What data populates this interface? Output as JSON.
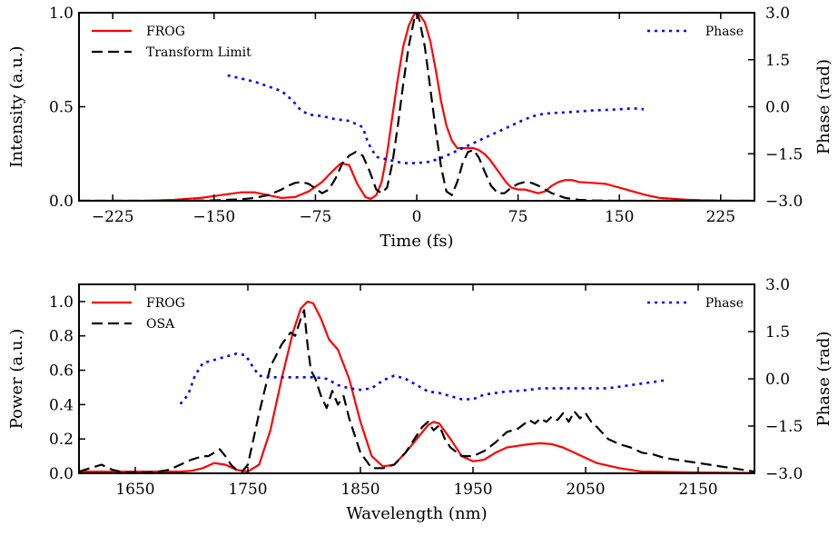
{
  "chart_data": [
    {
      "type": "line",
      "xlabel": "Time (fs)",
      "ylabel": "Intensity (a.u.)",
      "y2label": "Phase (rad)",
      "xlim": [
        -250,
        250
      ],
      "ylim": [
        0,
        1.0
      ],
      "y2lim": [
        -3.0,
        3.0
      ],
      "xticks": [
        -225,
        -150,
        -75,
        0,
        75,
        150,
        225
      ],
      "xtick_labels": [
        "−225",
        "−150",
        "−75",
        "0",
        "75",
        "150",
        "225"
      ],
      "yticks": [
        0.0,
        0.5,
        1.0
      ],
      "ytick_labels": [
        "0.0",
        "0.5",
        "1.0"
      ],
      "y2ticks": [
        -3.0,
        -1.5,
        0.0,
        1.5,
        3.0
      ],
      "y2tick_labels": [
        "−3.0",
        "−1.5",
        "0.0",
        "1.5",
        "3.0"
      ],
      "grid": false,
      "legend_left": [
        "FROG",
        "Transform Limit"
      ],
      "legend_right": [
        "Phase"
      ],
      "series": [
        {
          "name": "FROG",
          "axis": "left",
          "color": "#ff0000",
          "dash": "solid",
          "x": [
            -250,
            -200,
            -180,
            -160,
            -145,
            -130,
            -120,
            -110,
            -100,
            -90,
            -80,
            -70,
            -62,
            -56,
            -50,
            -44,
            -38,
            -34,
            -30,
            -26,
            -22,
            -18,
            -14,
            -10,
            -6,
            -2,
            0,
            2,
            6,
            10,
            14,
            18,
            22,
            26,
            30,
            34,
            38,
            42,
            46,
            50,
            54,
            58,
            62,
            66,
            70,
            75,
            80,
            85,
            90,
            95,
            100,
            105,
            110,
            115,
            120,
            130,
            140,
            150,
            160,
            170,
            180,
            190,
            200,
            210,
            225,
            250
          ],
          "y": [
            0,
            0,
            0.005,
            0.015,
            0.03,
            0.045,
            0.045,
            0.03,
            0.015,
            0.02,
            0.05,
            0.1,
            0.16,
            0.2,
            0.19,
            0.09,
            0.02,
            0.01,
            0.03,
            0.1,
            0.25,
            0.45,
            0.65,
            0.82,
            0.93,
            0.99,
            1.0,
            0.99,
            0.95,
            0.85,
            0.7,
            0.53,
            0.4,
            0.32,
            0.28,
            0.28,
            0.28,
            0.28,
            0.27,
            0.25,
            0.22,
            0.18,
            0.14,
            0.1,
            0.07,
            0.06,
            0.06,
            0.05,
            0.04,
            0.05,
            0.08,
            0.1,
            0.11,
            0.11,
            0.1,
            0.095,
            0.09,
            0.07,
            0.05,
            0.03,
            0.015,
            0.01,
            0.006,
            0.003,
            0.001,
            0
          ]
        },
        {
          "name": "Transform Limit",
          "axis": "left",
          "color": "#000000",
          "dash": "dashed",
          "x": [
            -250,
            -180,
            -150,
            -130,
            -120,
            -110,
            -100,
            -95,
            -90,
            -85,
            -80,
            -75,
            -70,
            -65,
            -60,
            -55,
            -50,
            -45,
            -40,
            -35,
            -30,
            -26,
            -22,
            -18,
            -14,
            -10,
            -6,
            -2,
            0,
            2,
            6,
            10,
            14,
            18,
            22,
            26,
            30,
            34,
            38,
            42,
            46,
            50,
            55,
            60,
            65,
            70,
            75,
            80,
            85,
            90,
            95,
            100,
            110,
            120,
            130,
            150,
            180,
            250
          ],
          "y": [
            0,
            0,
            0.002,
            0.008,
            0.015,
            0.03,
            0.06,
            0.08,
            0.095,
            0.1,
            0.09,
            0.065,
            0.04,
            0.06,
            0.12,
            0.2,
            0.24,
            0.26,
            0.24,
            0.16,
            0.06,
            0.04,
            0.07,
            0.2,
            0.4,
            0.62,
            0.82,
            0.96,
            1.0,
            0.96,
            0.82,
            0.6,
            0.38,
            0.18,
            0.05,
            0.03,
            0.1,
            0.2,
            0.26,
            0.27,
            0.23,
            0.16,
            0.08,
            0.04,
            0.04,
            0.07,
            0.09,
            0.1,
            0.095,
            0.08,
            0.06,
            0.04,
            0.015,
            0.005,
            0.002,
            0,
            0,
            0
          ]
        },
        {
          "name": "Phase",
          "axis": "right",
          "color": "#0000ff",
          "dash": "dotted",
          "x": [
            -140,
            -130,
            -120,
            -110,
            -100,
            -92,
            -86,
            -80,
            -70,
            -60,
            -50,
            -40,
            -36,
            -30,
            -20,
            -10,
            0,
            10,
            20,
            30,
            40,
            50,
            60,
            70,
            80,
            90,
            100,
            110,
            120,
            130,
            140,
            150,
            160,
            168
          ],
          "y": [
            1.0,
            0.9,
            0.8,
            0.65,
            0.5,
            0.2,
            -0.1,
            -0.25,
            -0.3,
            -0.4,
            -0.45,
            -0.65,
            -1.15,
            -1.6,
            -1.7,
            -1.8,
            -1.8,
            -1.75,
            -1.6,
            -1.4,
            -1.2,
            -1.0,
            -0.8,
            -0.6,
            -0.4,
            -0.25,
            -0.2,
            -0.18,
            -0.15,
            -0.12,
            -0.1,
            -0.08,
            -0.05,
            -0.08
          ]
        }
      ]
    },
    {
      "type": "line",
      "xlabel": "Wavelength (nm)",
      "ylabel": "Power (a.u.)",
      "y2label": "Phase (rad)",
      "xlim": [
        1600,
        2200
      ],
      "ylim": [
        0,
        1.1
      ],
      "y2lim": [
        -3.0,
        3.0
      ],
      "xticks": [
        1650,
        1750,
        1850,
        1950,
        2050,
        2150
      ],
      "xtick_labels": [
        "1650",
        "1750",
        "1850",
        "1950",
        "2050",
        "2150"
      ],
      "yticks": [
        0.0,
        0.2,
        0.4,
        0.6,
        0.8,
        1.0
      ],
      "ytick_labels": [
        "0.0",
        "0.2",
        "0.4",
        "0.6",
        "0.8",
        "1.0"
      ],
      "y2ticks": [
        -3.0,
        -1.5,
        0.0,
        1.5,
        3.0
      ],
      "y2tick_labels": [
        "−3.0",
        "−1.5",
        "0.0",
        "1.5",
        "3.0"
      ],
      "grid": false,
      "legend_left": [
        "FROG",
        "OSA"
      ],
      "legend_right": [
        "Phase"
      ],
      "series": [
        {
          "name": "FROG",
          "axis": "left",
          "color": "#ff0000",
          "dash": "solid",
          "x": [
            1600,
            1650,
            1690,
            1700,
            1710,
            1720,
            1730,
            1740,
            1750,
            1760,
            1770,
            1780,
            1790,
            1797,
            1803,
            1808,
            1815,
            1822,
            1830,
            1840,
            1850,
            1860,
            1870,
            1880,
            1890,
            1900,
            1910,
            1915,
            1920,
            1930,
            1940,
            1950,
            1960,
            1970,
            1980,
            1990,
            2000,
            2010,
            2020,
            2030,
            2040,
            2050,
            2060,
            2080,
            2100,
            2150,
            2200
          ],
          "y": [
            0.01,
            0.01,
            0.01,
            0.015,
            0.03,
            0.06,
            0.05,
            0.02,
            0.01,
            0.05,
            0.25,
            0.55,
            0.82,
            0.96,
            1.0,
            0.99,
            0.9,
            0.78,
            0.72,
            0.55,
            0.3,
            0.1,
            0.04,
            0.05,
            0.12,
            0.2,
            0.28,
            0.3,
            0.29,
            0.2,
            0.1,
            0.07,
            0.08,
            0.12,
            0.15,
            0.16,
            0.17,
            0.175,
            0.17,
            0.15,
            0.12,
            0.09,
            0.06,
            0.03,
            0.01,
            0.005,
            0.002
          ]
        },
        {
          "name": "OSA",
          "axis": "left",
          "color": "#000000",
          "dash": "dashed",
          "x": [
            1600,
            1610,
            1620,
            1630,
            1640,
            1650,
            1660,
            1670,
            1680,
            1690,
            1700,
            1710,
            1715,
            1720,
            1725,
            1730,
            1735,
            1740,
            1745,
            1750,
            1760,
            1770,
            1780,
            1788,
            1792,
            1797,
            1800,
            1803,
            1806,
            1810,
            1815,
            1820,
            1825,
            1830,
            1835,
            1840,
            1845,
            1850,
            1860,
            1870,
            1880,
            1890,
            1900,
            1905,
            1910,
            1915,
            1920,
            1925,
            1930,
            1940,
            1950,
            1960,
            1970,
            1980,
            1990,
            2000,
            2005,
            2010,
            2015,
            2020,
            2025,
            2030,
            2035,
            2040,
            2045,
            2050,
            2055,
            2060,
            2070,
            2080,
            2090,
            2100,
            2110,
            2120,
            2130,
            2140,
            2150,
            2160,
            2170,
            2180,
            2190,
            2200
          ],
          "y": [
            0.01,
            0.03,
            0.05,
            0.02,
            0.005,
            0.005,
            0.005,
            0.01,
            0.02,
            0.05,
            0.08,
            0.1,
            0.1,
            0.12,
            0.14,
            0.1,
            0.05,
            0.02,
            0.01,
            0.05,
            0.35,
            0.62,
            0.75,
            0.82,
            0.8,
            0.9,
            0.95,
            0.75,
            0.6,
            0.55,
            0.45,
            0.38,
            0.48,
            0.4,
            0.45,
            0.32,
            0.22,
            0.12,
            0.03,
            0.03,
            0.05,
            0.12,
            0.22,
            0.27,
            0.3,
            0.25,
            0.28,
            0.2,
            0.15,
            0.1,
            0.1,
            0.13,
            0.18,
            0.24,
            0.26,
            0.31,
            0.29,
            0.32,
            0.3,
            0.33,
            0.31,
            0.35,
            0.3,
            0.36,
            0.32,
            0.35,
            0.3,
            0.27,
            0.2,
            0.17,
            0.15,
            0.12,
            0.11,
            0.09,
            0.08,
            0.07,
            0.06,
            0.05,
            0.04,
            0.03,
            0.02,
            0.01
          ]
        },
        {
          "name": "Phase",
          "axis": "right",
          "color": "#0000ff",
          "dash": "dotted",
          "x": [
            1690,
            1697,
            1703,
            1710,
            1720,
            1730,
            1740,
            1748,
            1755,
            1760,
            1770,
            1780,
            1790,
            1800,
            1810,
            1820,
            1830,
            1840,
            1850,
            1860,
            1870,
            1880,
            1890,
            1900,
            1910,
            1920,
            1930,
            1940,
            1950,
            1960,
            1970,
            1980,
            1990,
            2000,
            2010,
            2020,
            2030,
            2040,
            2050,
            2060,
            2070,
            2080,
            2090,
            2100,
            2110,
            2120
          ],
          "y": [
            -0.8,
            -0.5,
            0.1,
            0.5,
            0.6,
            0.7,
            0.8,
            0.75,
            0.35,
            0.1,
            0.05,
            0.05,
            0.05,
            0.05,
            0.05,
            0.0,
            -0.2,
            -0.3,
            -0.35,
            -0.3,
            -0.05,
            0.1,
            0.0,
            -0.2,
            -0.4,
            -0.45,
            -0.55,
            -0.65,
            -0.65,
            -0.5,
            -0.45,
            -0.4,
            -0.38,
            -0.35,
            -0.3,
            -0.3,
            -0.3,
            -0.3,
            -0.3,
            -0.3,
            -0.3,
            -0.25,
            -0.2,
            -0.15,
            -0.1,
            -0.05
          ]
        }
      ]
    }
  ]
}
